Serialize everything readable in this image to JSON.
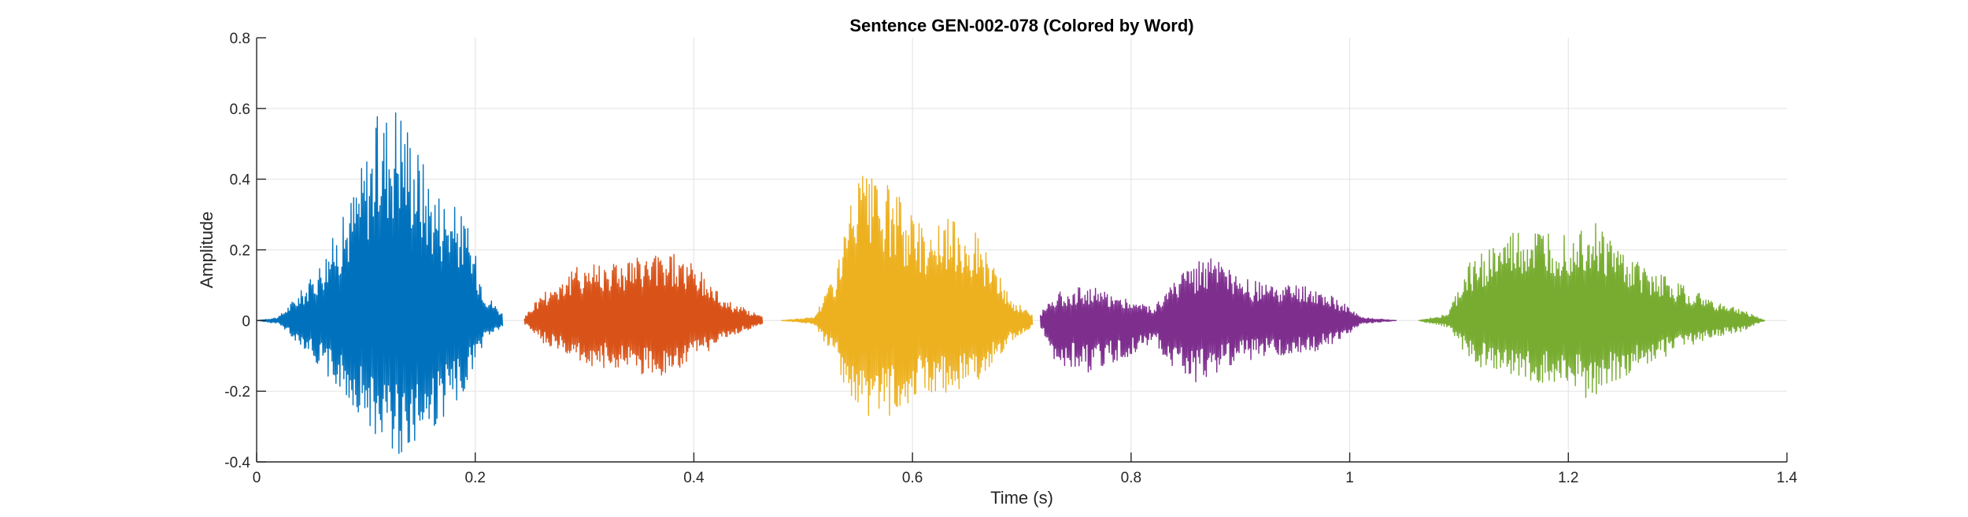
{
  "chart_data": {
    "type": "line",
    "title": "Sentence GEN-002-078 (Colored by Word)",
    "xlabel": "Time (s)",
    "ylabel": "Amplitude",
    "xlim": [
      0,
      1.4
    ],
    "ylim": [
      -0.4,
      0.8
    ],
    "xticks": [
      0,
      0.2,
      0.4,
      0.6,
      0.8,
      1,
      1.2,
      1.4
    ],
    "xtick_labels": [
      "0",
      "0.2",
      "0.4",
      "0.6",
      "0.8",
      "1",
      "1.2",
      "1.4"
    ],
    "yticks": [
      -0.4,
      -0.2,
      0,
      0.2,
      0.4,
      0.6,
      0.8
    ],
    "ytick_labels": [
      "-0.4",
      "-0.2",
      "0",
      "0.2",
      "0.4",
      "0.6",
      "0.8"
    ],
    "grid": true,
    "series": [
      {
        "color": "#0072BD",
        "start": 0.0,
        "end": 0.225,
        "envelope_pos": [
          [
            0.0,
            0.0
          ],
          [
            0.02,
            0.01
          ],
          [
            0.05,
            0.12
          ],
          [
            0.08,
            0.3
          ],
          [
            0.11,
            0.58
          ],
          [
            0.13,
            0.65
          ],
          [
            0.16,
            0.4
          ],
          [
            0.19,
            0.3
          ],
          [
            0.21,
            0.08
          ],
          [
            0.225,
            0.02
          ]
        ],
        "envelope_neg": [
          [
            0.0,
            0.0
          ],
          [
            0.02,
            -0.01
          ],
          [
            0.05,
            -0.1
          ],
          [
            0.08,
            -0.22
          ],
          [
            0.11,
            -0.33
          ],
          [
            0.13,
            -0.38
          ],
          [
            0.16,
            -0.33
          ],
          [
            0.19,
            -0.2
          ],
          [
            0.21,
            -0.05
          ],
          [
            0.225,
            -0.02
          ]
        ]
      },
      {
        "color": "#D95319",
        "start": 0.245,
        "end": 0.463,
        "envelope_pos": [
          [
            0.245,
            0.01
          ],
          [
            0.26,
            0.08
          ],
          [
            0.3,
            0.17
          ],
          [
            0.35,
            0.18
          ],
          [
            0.38,
            0.2
          ],
          [
            0.4,
            0.16
          ],
          [
            0.43,
            0.06
          ],
          [
            0.463,
            0.01
          ]
        ],
        "envelope_neg": [
          [
            0.245,
            -0.01
          ],
          [
            0.26,
            -0.06
          ],
          [
            0.3,
            -0.13
          ],
          [
            0.35,
            -0.15
          ],
          [
            0.38,
            -0.17
          ],
          [
            0.4,
            -0.12
          ],
          [
            0.43,
            -0.05
          ],
          [
            0.463,
            -0.01
          ]
        ]
      },
      {
        "color": "#EDB120",
        "start": 0.48,
        "end": 0.71,
        "envelope_pos": [
          [
            0.48,
            0.0
          ],
          [
            0.51,
            0.01
          ],
          [
            0.53,
            0.15
          ],
          [
            0.55,
            0.42
          ],
          [
            0.58,
            0.38
          ],
          [
            0.61,
            0.28
          ],
          [
            0.64,
            0.29
          ],
          [
            0.66,
            0.25
          ],
          [
            0.69,
            0.06
          ],
          [
            0.71,
            0.02
          ]
        ],
        "envelope_neg": [
          [
            0.48,
            0.0
          ],
          [
            0.51,
            -0.01
          ],
          [
            0.53,
            -0.12
          ],
          [
            0.55,
            -0.31
          ],
          [
            0.58,
            -0.27
          ],
          [
            0.61,
            -0.2
          ],
          [
            0.64,
            -0.21
          ],
          [
            0.66,
            -0.17
          ],
          [
            0.69,
            -0.06
          ],
          [
            0.71,
            -0.02
          ]
        ]
      },
      {
        "color": "#7E2F8E",
        "start": 0.717,
        "end": 1.043,
        "envelope_pos": [
          [
            0.717,
            0.02
          ],
          [
            0.73,
            0.08
          ],
          [
            0.76,
            0.1
          ],
          [
            0.8,
            0.06
          ],
          [
            0.82,
            0.04
          ],
          [
            0.85,
            0.15
          ],
          [
            0.87,
            0.19
          ],
          [
            0.9,
            0.12
          ],
          [
            0.93,
            0.1
          ],
          [
            0.96,
            0.1
          ],
          [
            0.99,
            0.06
          ],
          [
            1.01,
            0.01
          ],
          [
            1.043,
            0.0
          ]
        ],
        "envelope_neg": [
          [
            0.717,
            -0.02
          ],
          [
            0.73,
            -0.12
          ],
          [
            0.76,
            -0.15
          ],
          [
            0.8,
            -0.1
          ],
          [
            0.82,
            -0.06
          ],
          [
            0.85,
            -0.18
          ],
          [
            0.87,
            -0.17
          ],
          [
            0.9,
            -0.12
          ],
          [
            0.93,
            -0.1
          ],
          [
            0.96,
            -0.1
          ],
          [
            0.99,
            -0.06
          ],
          [
            1.01,
            -0.01
          ],
          [
            1.043,
            0.0
          ]
        ]
      },
      {
        "color": "#77AC30",
        "start": 1.063,
        "end": 1.38,
        "envelope_pos": [
          [
            1.063,
            0.0
          ],
          [
            1.09,
            0.02
          ],
          [
            1.11,
            0.17
          ],
          [
            1.15,
            0.25
          ],
          [
            1.2,
            0.26
          ],
          [
            1.22,
            0.29
          ],
          [
            1.26,
            0.17
          ],
          [
            1.3,
            0.11
          ],
          [
            1.33,
            0.06
          ],
          [
            1.36,
            0.03
          ],
          [
            1.38,
            0.0
          ]
        ],
        "envelope_neg": [
          [
            1.063,
            0.0
          ],
          [
            1.09,
            -0.02
          ],
          [
            1.11,
            -0.12
          ],
          [
            1.15,
            -0.17
          ],
          [
            1.2,
            -0.19
          ],
          [
            1.22,
            -0.23
          ],
          [
            1.26,
            -0.14
          ],
          [
            1.3,
            -0.09
          ],
          [
            1.33,
            -0.05
          ],
          [
            1.36,
            -0.03
          ],
          [
            1.38,
            0.0
          ]
        ]
      }
    ]
  }
}
